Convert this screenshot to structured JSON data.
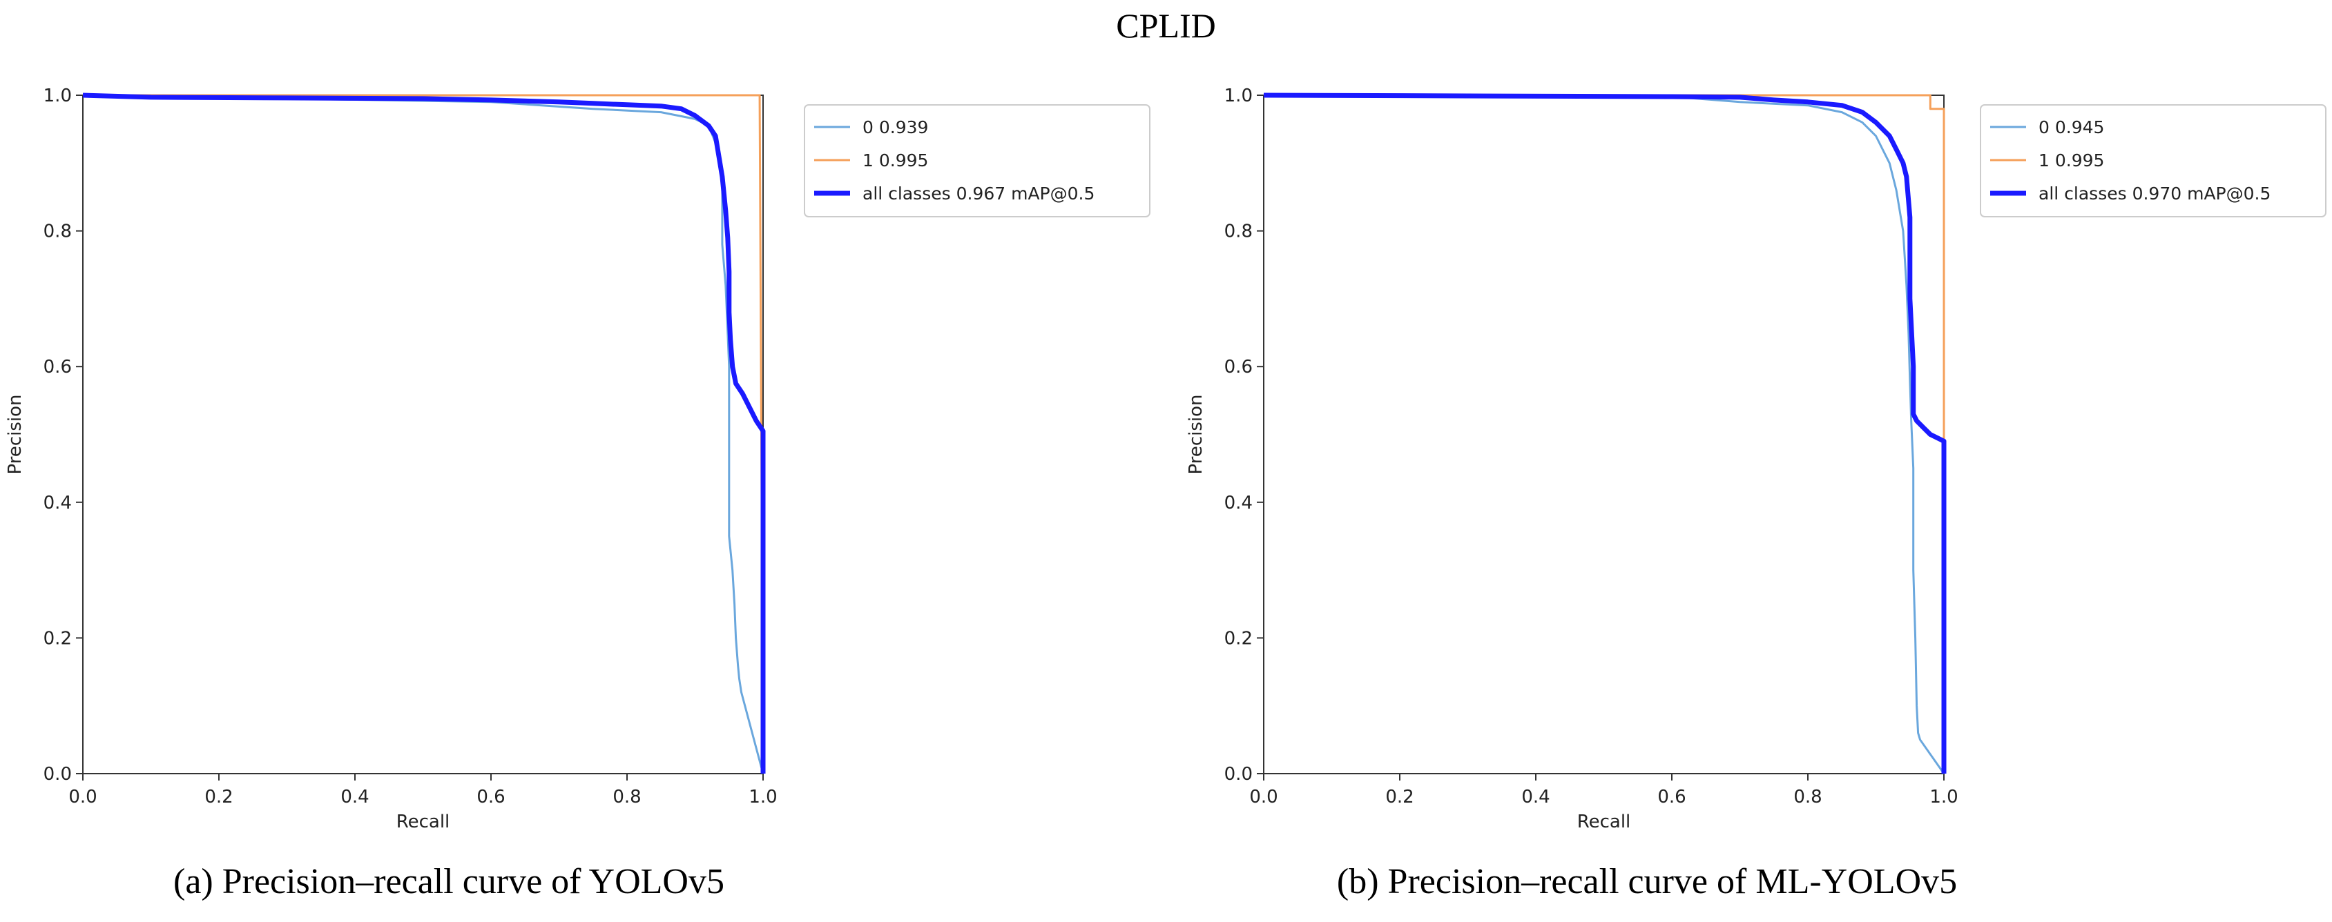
{
  "page_title": "CPLID",
  "chart_data": [
    {
      "type": "line",
      "caption": "(a) Precision–recall curve of YOLOv5",
      "xlabel": "Recall",
      "ylabel": "Precision",
      "xlim": [
        0.0,
        1.0
      ],
      "ylim": [
        0.0,
        1.0
      ],
      "xticks": [
        "0.0",
        "0.2",
        "0.4",
        "0.6",
        "0.8",
        "1.0"
      ],
      "yticks": [
        "0.0",
        "0.2",
        "0.4",
        "0.6",
        "0.8",
        "1.0"
      ],
      "legend_position": "top-right-outside",
      "series": [
        {
          "name": "0 0.939",
          "color": "#6aa7dd",
          "width": "thin",
          "x": [
            0.0,
            0.3,
            0.6,
            0.75,
            0.85,
            0.9,
            0.92,
            0.93,
            0.935,
            0.94,
            0.94,
            0.945,
            0.948,
            0.95,
            0.95,
            0.955,
            0.958,
            0.96,
            0.963,
            0.965,
            0.968,
            1.0
          ],
          "y": [
            1.0,
            0.995,
            0.99,
            0.98,
            0.975,
            0.965,
            0.955,
            0.93,
            0.9,
            0.88,
            0.78,
            0.72,
            0.65,
            0.6,
            0.35,
            0.3,
            0.25,
            0.2,
            0.16,
            0.14,
            0.12,
            0.0
          ]
        },
        {
          "name": "1 0.995",
          "color": "#f5a05a",
          "width": "thin",
          "x": [
            0.0,
            0.995,
            0.995,
            1.0
          ],
          "y": [
            1.0,
            1.0,
            0.99,
            0.0
          ]
        },
        {
          "name": "all classes 0.967 mAP@0.5",
          "color": "#1a1aff",
          "width": "thick",
          "x": [
            0.0,
            0.1,
            0.3,
            0.5,
            0.6,
            0.7,
            0.75,
            0.8,
            0.85,
            0.88,
            0.9,
            0.92,
            0.93,
            0.935,
            0.94,
            0.945,
            0.948,
            0.95,
            0.95,
            0.952,
            0.955,
            0.96,
            0.97,
            0.98,
            0.99,
            1.0,
            1.0
          ],
          "y": [
            1.0,
            0.997,
            0.996,
            0.995,
            0.993,
            0.99,
            0.988,
            0.986,
            0.984,
            0.98,
            0.97,
            0.955,
            0.94,
            0.91,
            0.88,
            0.83,
            0.79,
            0.74,
            0.68,
            0.64,
            0.6,
            0.575,
            0.56,
            0.54,
            0.52,
            0.505,
            0.0
          ]
        }
      ]
    },
    {
      "type": "line",
      "caption": "(b) Precision–recall curve of ML-YOLOv5",
      "xlabel": "Recall",
      "ylabel": "Precision",
      "xlim": [
        0.0,
        1.0
      ],
      "ylim": [
        0.0,
        1.0
      ],
      "xticks": [
        "0.0",
        "0.2",
        "0.4",
        "0.6",
        "0.8",
        "1.0"
      ],
      "yticks": [
        "0.0",
        "0.2",
        "0.4",
        "0.6",
        "0.8",
        "1.0"
      ],
      "legend_position": "top-right-outside",
      "series": [
        {
          "name": "0 0.945",
          "color": "#6aa7dd",
          "width": "thin",
          "x": [
            0.0,
            0.6,
            0.7,
            0.8,
            0.85,
            0.88,
            0.9,
            0.92,
            0.93,
            0.94,
            0.945,
            0.948,
            0.95,
            0.952,
            0.955,
            0.955,
            0.958,
            0.96,
            0.962,
            0.965,
            1.0
          ],
          "y": [
            1.0,
            0.998,
            0.99,
            0.985,
            0.975,
            0.96,
            0.94,
            0.9,
            0.86,
            0.8,
            0.72,
            0.65,
            0.58,
            0.52,
            0.45,
            0.3,
            0.2,
            0.1,
            0.06,
            0.05,
            0.0
          ]
        },
        {
          "name": "1 0.995",
          "color": "#f5a05a",
          "width": "thin",
          "x": [
            0.0,
            0.98,
            0.98,
            1.0,
            1.0
          ],
          "y": [
            1.0,
            1.0,
            0.98,
            0.98,
            0.0
          ]
        },
        {
          "name": "all classes 0.970 mAP@0.5",
          "color": "#1a1aff",
          "width": "thick",
          "x": [
            0.0,
            0.3,
            0.6,
            0.7,
            0.75,
            0.8,
            0.85,
            0.88,
            0.9,
            0.92,
            0.93,
            0.94,
            0.945,
            0.95,
            0.95,
            0.955,
            0.955,
            0.96,
            0.97,
            0.98,
            0.99,
            1.0,
            1.0
          ],
          "y": [
            1.0,
            0.999,
            0.998,
            0.997,
            0.993,
            0.99,
            0.985,
            0.975,
            0.96,
            0.94,
            0.92,
            0.9,
            0.88,
            0.82,
            0.7,
            0.6,
            0.53,
            0.52,
            0.51,
            0.5,
            0.495,
            0.49,
            0.0
          ]
        }
      ]
    }
  ]
}
